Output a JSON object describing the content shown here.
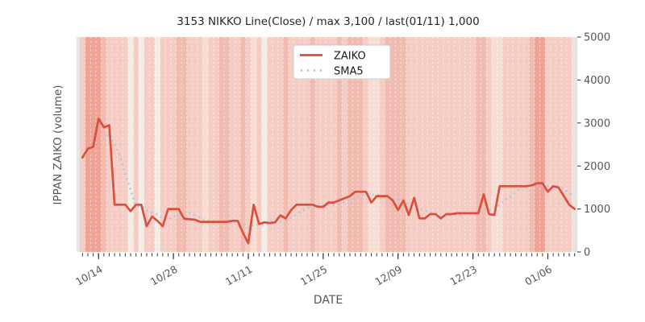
{
  "chart_data": {
    "type": "line",
    "title": "3153 NIKKO Line(Close) / max 3,100 / last(01/11) 1,000",
    "xlabel": "DATE",
    "ylabel": "IPPAN ZAIKO (volume)",
    "ylim": [
      0,
      5000
    ],
    "yticks": [
      0,
      1000,
      2000,
      3000,
      4000,
      5000
    ],
    "grid": "daily vertical white dashed separators over shaded day columns",
    "legend_position": "upper-center",
    "max_value": 3100,
    "last_point": {
      "date": "01/11",
      "value": 1000
    },
    "xticks": {
      "labels": [
        "10/14",
        "10/28",
        "11/11",
        "11/25",
        "12/09",
        "12/23",
        "01/06"
      ],
      "day_indices": [
        3,
        17,
        31,
        45,
        59,
        73,
        87
      ]
    },
    "n_days": 93,
    "series": [
      {
        "name": "ZAIKO",
        "style": "solid",
        "color": "#d9513e",
        "values": [
          2200,
          2400,
          2450,
          3100,
          2900,
          2950,
          1100,
          1100,
          1100,
          950,
          1100,
          1100,
          600,
          825,
          725,
          600,
          1000,
          1000,
          1000,
          775,
          760,
          750,
          700,
          700,
          700,
          700,
          700,
          700,
          725,
          725,
          450,
          200,
          1100,
          650,
          690,
          670,
          690,
          850,
          780,
          975,
          1100,
          1100,
          1100,
          1100,
          1050,
          1050,
          1150,
          1150,
          1200,
          1250,
          1300,
          1400,
          1400,
          1400,
          1150,
          1300,
          1300,
          1300,
          1200,
          975,
          1200,
          860,
          1260,
          780,
          780,
          880,
          880,
          780,
          880,
          880,
          900,
          900,
          900,
          900,
          900,
          1340,
          880,
          860,
          1530,
          1530,
          1530,
          1530,
          1530,
          1530,
          1550,
          1600,
          1600,
          1400,
          1530,
          1500,
          1300,
          1100,
          1000
        ]
      },
      {
        "name": "SMA5",
        "style": "dotted",
        "color": "#a9c7e2",
        "derived_from": "ZAIKO",
        "window": 5
      }
    ],
    "background": {
      "level_colors": {
        "0": "#f3eee5",
        "1": "#f8ddd5",
        "2": "#f6cdc5",
        "3": "#f2bbb0",
        "4": "#efa395",
        "5": "#e8e5e1"
      },
      "day_levels": [
        2,
        4,
        4,
        4,
        3,
        2,
        2,
        2,
        2,
        0,
        2,
        0,
        2,
        2,
        0,
        2,
        2,
        2,
        3,
        3,
        2,
        2,
        2,
        1,
        2,
        2,
        3,
        3,
        2,
        2,
        3,
        2,
        1,
        2,
        0,
        2,
        2,
        2,
        3,
        2,
        2,
        2,
        2,
        3,
        2,
        2,
        2,
        2,
        3,
        2,
        3,
        3,
        3,
        2,
        1,
        1,
        2,
        3,
        3,
        3,
        3,
        2,
        2,
        2,
        2,
        2,
        2,
        2,
        2,
        2,
        2,
        2,
        2,
        2,
        3,
        3,
        2,
        1,
        1,
        2,
        2,
        2,
        2,
        2,
        3,
        4,
        4,
        2,
        2,
        2,
        2,
        2,
        5
      ]
    }
  }
}
